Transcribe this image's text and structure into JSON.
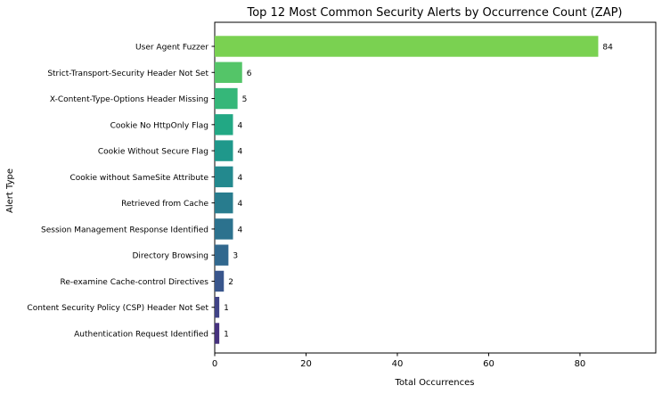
{
  "chart_data": {
    "type": "bar",
    "orientation": "horizontal",
    "title": "Top 12 Most Common Security Alerts by Occurrence Count (ZAP)",
    "xlabel": "Total Occurrences",
    "ylabel": "Alert Type",
    "xlim": [
      0,
      96.6
    ],
    "xticks": [
      0,
      20,
      40,
      60,
      80
    ],
    "grid": false,
    "legend": "none",
    "categories": [
      "User Agent Fuzzer",
      "Strict-Transport-Security Header Not Set",
      "X-Content-Type-Options Header Missing",
      "Cookie No HttpOnly Flag",
      "Cookie Without Secure Flag",
      "Cookie without SameSite Attribute",
      "Retrieved from Cache",
      "Session Management Response Identified",
      "Directory Browsing",
      "Re-examine Cache-control Directives",
      "Content Security Policy (CSP) Header Not Set",
      "Authentication Request Identified"
    ],
    "values": [
      84,
      6,
      5,
      4,
      4,
      4,
      4,
      4,
      3,
      2,
      1,
      1
    ],
    "colors": [
      "#7ad151",
      "#54c568",
      "#35b779",
      "#22a884",
      "#1f988b",
      "#23898e",
      "#287c8e",
      "#2c728e",
      "#31688e",
      "#39568c",
      "#414487",
      "#46327e"
    ]
  }
}
